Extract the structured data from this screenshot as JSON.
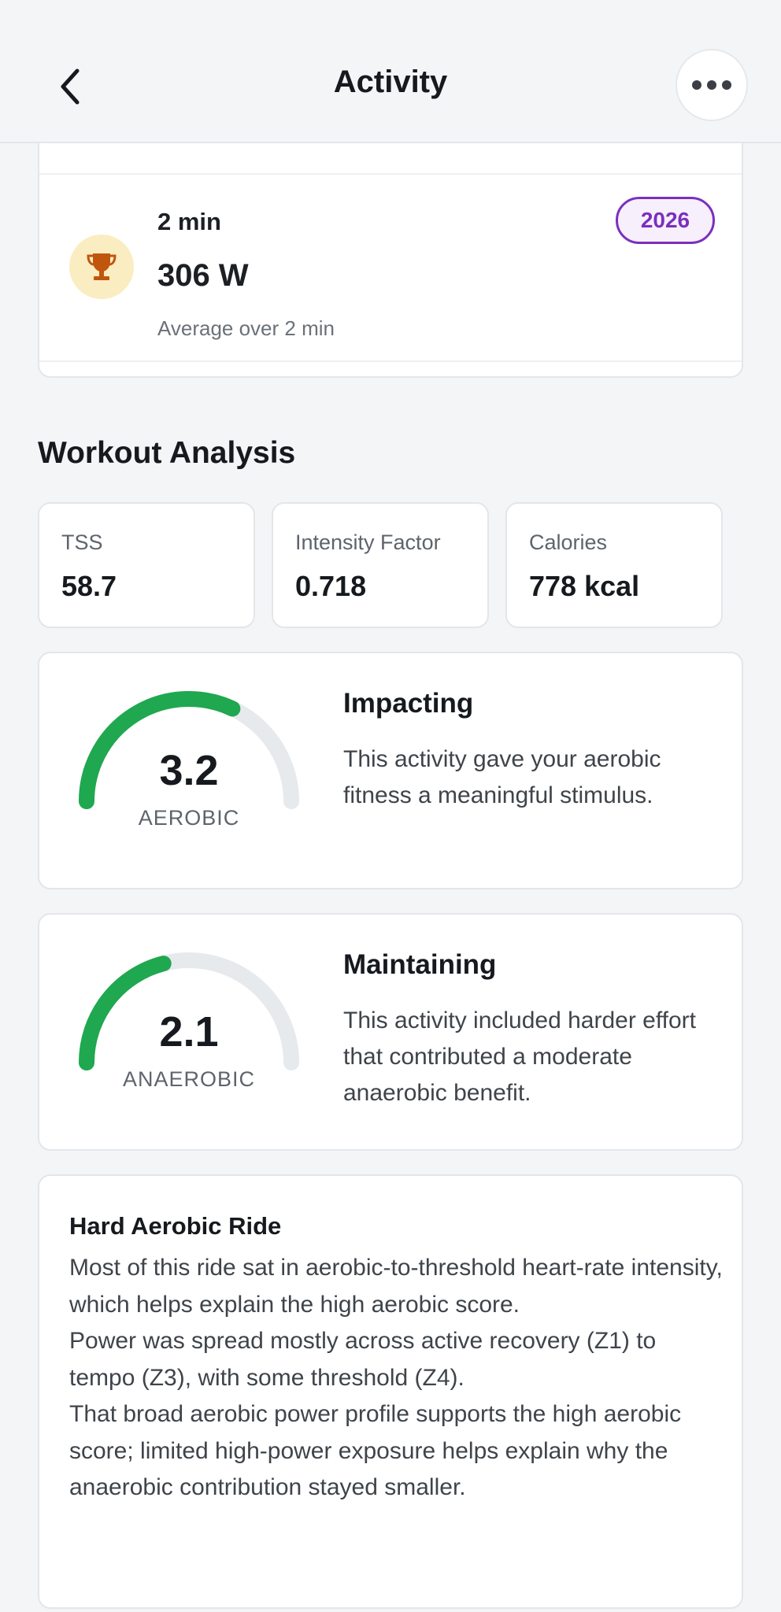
{
  "header": {
    "title": "Activity"
  },
  "record": {
    "duration": "2 min",
    "value": "306 W",
    "description": "Average over 2 min",
    "badge": "2026"
  },
  "analysis": {
    "title": "Workout Analysis",
    "metrics": [
      {
        "label": "TSS",
        "value": "58.7"
      },
      {
        "label": "Intensity Factor",
        "value": "0.718"
      },
      {
        "label": "Calories",
        "value": "778 kcal"
      }
    ],
    "aerobic": {
      "score": "3.2",
      "fraction": 0.64,
      "label": "AEROBIC",
      "title": "Impacting",
      "description": "This activity gave your aerobic fitness a meaningful stimulus."
    },
    "anaerobic": {
      "score": "2.1",
      "fraction": 0.42,
      "label": "ANAEROBIC",
      "title": "Maintaining",
      "description": "This activity included harder effort that contributed a moderate anaerobic benefit."
    }
  },
  "summary": {
    "title": "Hard Aerobic Ride",
    "paragraphs": [
      "Most of this ride sat in aerobic-to-threshold heart-rate intensity, which helps explain the high aerobic score.",
      "Power was spread mostly across active recovery (Z1) to tempo (Z3), with some threshold (Z4).",
      "That broad aerobic power profile supports the high aerobic score; limited high-power exposure helps explain why the anaerobic contribution stayed smaller."
    ]
  },
  "colors": {
    "gauge_fill": "#1fa84f",
    "gauge_track": "#e6eaed",
    "badge": "#7b2fbf",
    "trophy": "#c0560d"
  }
}
